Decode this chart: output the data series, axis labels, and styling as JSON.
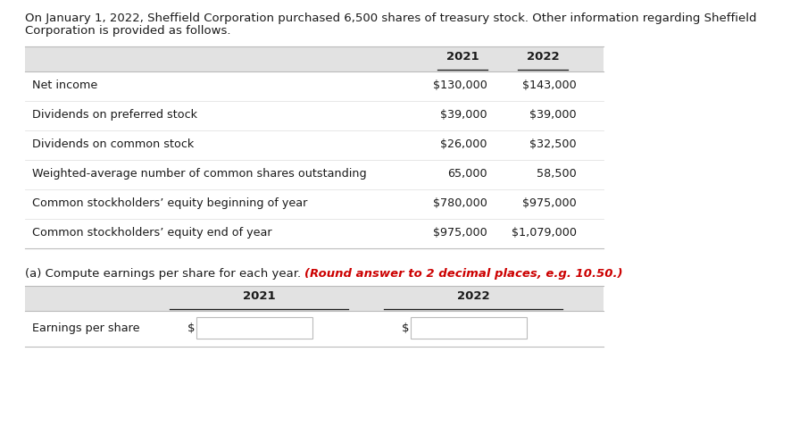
{
  "header_line1": "On January 1, 2022, Sheffield Corporation purchased 6,500 shares of treasury stock. Other information regarding Sheffield",
  "header_line2": "Corporation is provided as follows.",
  "table1_rows": [
    [
      "Net income",
      "$130,000",
      "$143,000"
    ],
    [
      "Dividends on preferred stock",
      "$39,000",
      "$39,000"
    ],
    [
      "Dividends on common stock",
      "$26,000",
      "$32,500"
    ],
    [
      "Weighted-average number of common shares outstanding",
      "65,000",
      "58,500"
    ],
    [
      "Common stockholders’ equity beginning of year",
      "$780,000",
      "$975,000"
    ],
    [
      "Common stockholders’ equity end of year",
      "$975,000",
      "$1,079,000"
    ]
  ],
  "instruction_normal": "(a) Compute earnings per share for each year. ",
  "instruction_red": "(Round answer to 2 decimal places, e.g. 10.50.)",
  "bg_color": "#ffffff",
  "header_bg": "#e2e2e2",
  "text_color": "#1a1a1a",
  "red_color": "#cc0000",
  "border_color": "#bbbbbb",
  "font_size": 9.5
}
